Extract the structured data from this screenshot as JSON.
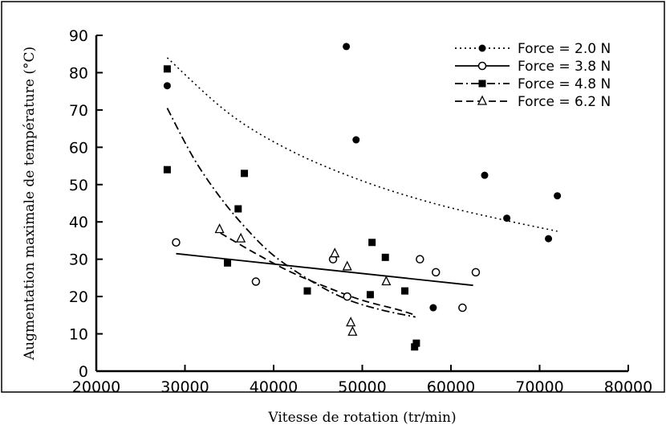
{
  "chart_data": {
    "type": "scatter",
    "title": "",
    "xlabel": "Vitesse de rotation (tr/min)",
    "ylabel": "Augmentation maximale de température (°C)",
    "xlim": [
      20000,
      80000
    ],
    "ylim": [
      0,
      90
    ],
    "xticks": [
      "20000",
      "30000",
      "40000",
      "50000",
      "60000",
      "70000",
      "80000"
    ],
    "yticks": [
      "0",
      "10",
      "20",
      "30",
      "40",
      "50",
      "60",
      "70",
      "80",
      "90"
    ],
    "legend_position": "top-right",
    "grid": false,
    "series": [
      {
        "name": "Force = 2.0 N",
        "marker": "filled-circle",
        "line": "dotted",
        "x": [
          28000,
          48200,
          49300,
          58000,
          63800,
          66300,
          71000,
          72000
        ],
        "y": [
          76.5,
          87,
          62,
          17,
          52.5,
          41,
          35.5,
          47
        ],
        "trend": {
          "x": [
            28000,
            35000,
            42000,
            50000,
            58000,
            66000,
            72000
          ],
          "y": [
            84,
            69,
            59,
            51,
            45,
            40.5,
            37.5
          ]
        }
      },
      {
        "name": "Force = 3.8 N",
        "marker": "open-circle",
        "line": "solid",
        "x": [
          29000,
          38000,
          46700,
          48300,
          56500,
          58300,
          61300,
          62800
        ],
        "y": [
          34.5,
          24,
          30,
          20,
          30,
          26.5,
          17,
          26.5
        ],
        "trend": {
          "x": [
            29000,
            62500
          ],
          "y": [
            31.5,
            23
          ]
        }
      },
      {
        "name": "Force = 4.8 N",
        "marker": "filled-square",
        "line": "dash-dot",
        "x": [
          28000,
          28000,
          34800,
          36000,
          36700,
          43800,
          50900,
          51100,
          52600,
          54800,
          55900,
          56100
        ],
        "y": [
          81,
          54,
          29,
          43.5,
          53,
          21.5,
          20.5,
          34.5,
          30.5,
          21.5,
          6.5,
          7.5
        ],
        "trend": {
          "x": [
            28000,
            31000,
            34000,
            37000,
            40000,
            44000,
            48000,
            52000,
            56000
          ],
          "y": [
            70.5,
            57,
            46.5,
            38,
            31,
            24.5,
            19.5,
            16.5,
            14.5
          ]
        }
      },
      {
        "name": "Force = 6.2 N",
        "marker": "open-triangle",
        "line": "dashed",
        "x": [
          33900,
          36300,
          46900,
          48300,
          48700,
          48900,
          52700
        ],
        "y": [
          38,
          35.5,
          31.5,
          28,
          13,
          10.5,
          24
        ],
        "trend": {
          "x": [
            34000,
            38000,
            42000,
            46000,
            50000,
            54000,
            56000
          ],
          "y": [
            37,
            31.5,
            26.5,
            22.5,
            19,
            16.5,
            15
          ]
        }
      }
    ]
  }
}
